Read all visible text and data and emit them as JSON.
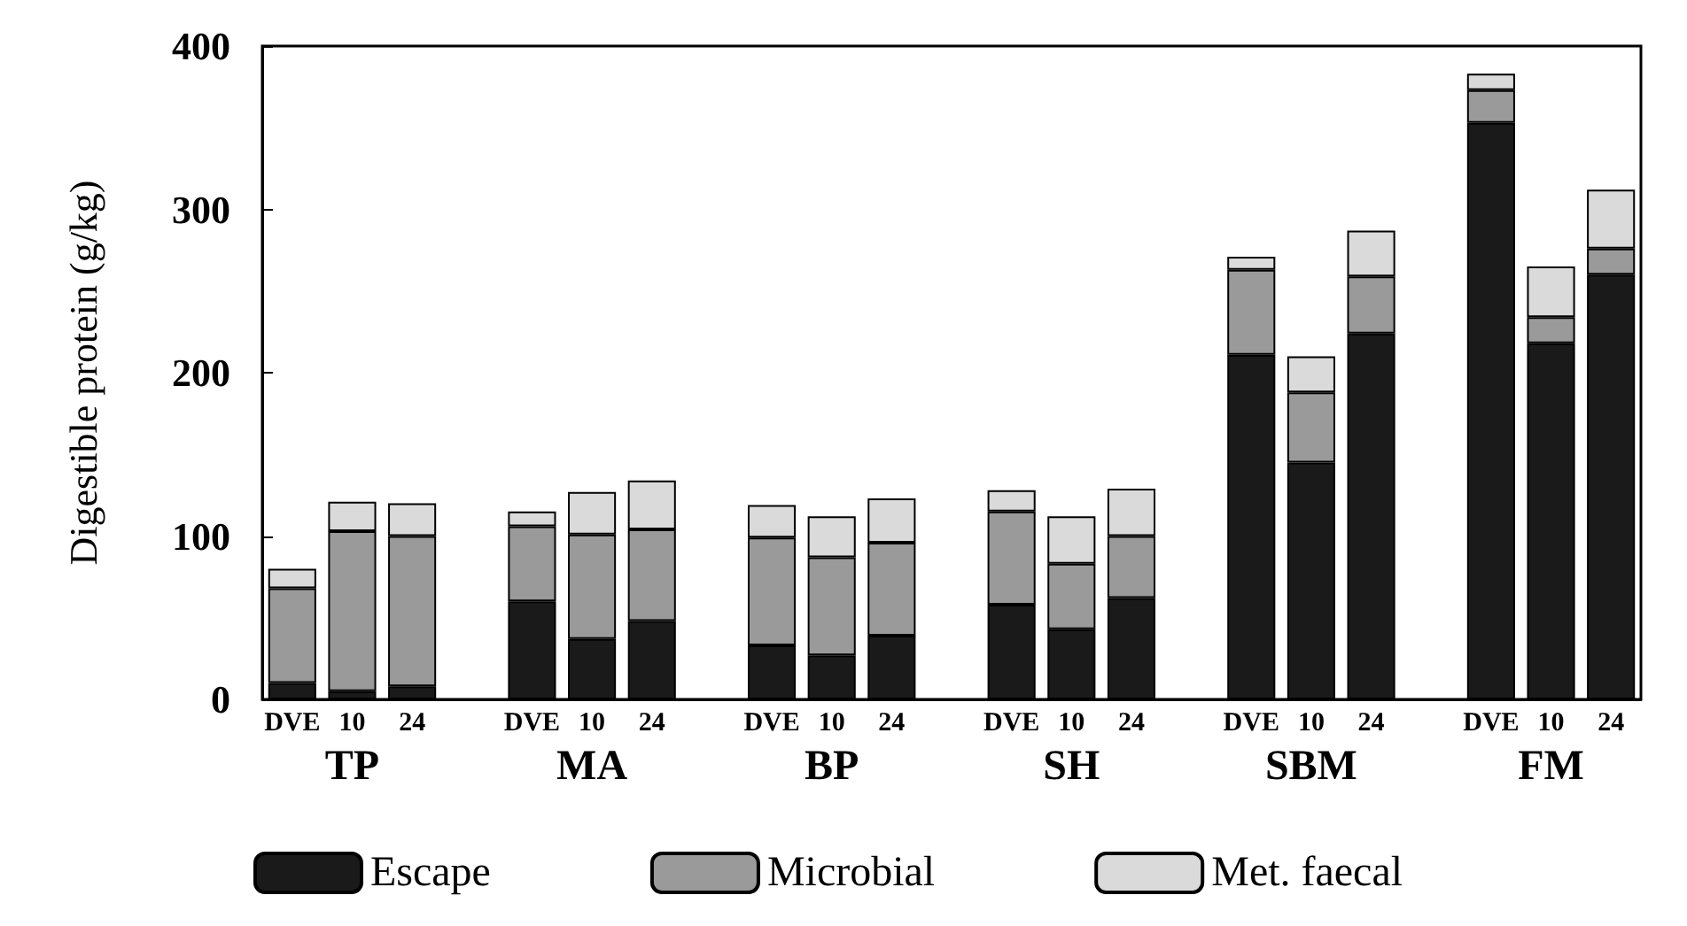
{
  "chart_data": {
    "type": "bar",
    "stacked": true,
    "ylabel": "Digestible protein (g/kg)",
    "categories": [
      "DVE",
      "10",
      "24",
      null,
      "DVE",
      "10",
      "24",
      null,
      "DVE",
      "10",
      "24",
      null,
      "DVE",
      "10",
      "24",
      null,
      "DVE",
      "10",
      "24",
      null,
      "DVE",
      "10",
      "24"
    ],
    "series": [
      {
        "name": "Escape",
        "color": "#1a1a1a",
        "values": [
          10,
          5,
          8,
          null,
          60,
          37,
          48,
          null,
          33,
          27,
          39,
          null,
          58,
          43,
          62,
          null,
          211,
          145,
          224,
          null,
          353,
          218,
          260
        ]
      },
      {
        "name": "Microbial",
        "color": "#9a9a9a",
        "values": [
          58,
          98,
          92,
          null,
          46,
          64,
          56,
          null,
          66,
          60,
          57,
          null,
          57,
          40,
          38,
          null,
          52,
          43,
          35,
          null,
          20,
          16,
          16
        ]
      },
      {
        "name": "Met. faecal",
        "color": "#dadada",
        "values": [
          12,
          18,
          20,
          null,
          9,
          26,
          30,
          null,
          20,
          25,
          27,
          null,
          13,
          29,
          29,
          null,
          8,
          22,
          28,
          null,
          10,
          31,
          36
        ]
      }
    ],
    "annotations": [
      "TP",
      "MA",
      "BP",
      "SH",
      "SBM",
      "FM"
    ],
    "ylim": [
      0,
      400
    ],
    "yticks": [
      0,
      100,
      200,
      300,
      400
    ],
    "grid": false,
    "legend": "bottom"
  }
}
